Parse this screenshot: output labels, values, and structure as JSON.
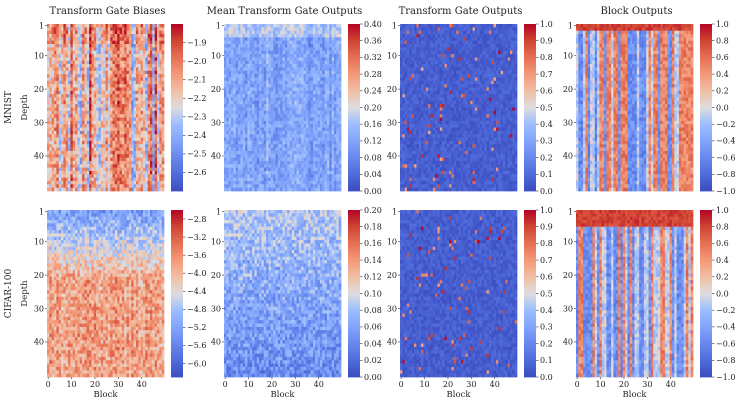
{
  "chart_data": [
    {
      "type": "heatmap",
      "grid": {
        "rows": 50,
        "cols": 50
      },
      "x_axis": {
        "label": "Block",
        "ticks": [
          0,
          10,
          20,
          30,
          40
        ]
      },
      "y_axis": {
        "label": "Depth",
        "ticks": [
          1,
          10,
          20,
          30,
          40
        ]
      },
      "row_labels": [
        "MNIST",
        "CIFAR-100"
      ],
      "panels": [
        {
          "title": "Transform Gate Biases",
          "pattern": "bias",
          "colorbars": [
            {
              "vmin": -2.7,
              "vmax": -1.8,
              "ticks": [
                "−1.9",
                "−2.0",
                "−2.1",
                "−2.2",
                "−2.3",
                "−2.4",
                "−2.5",
                "−2.6"
              ],
              "tick_values": [
                -1.9,
                -2.0,
                -2.1,
                -2.2,
                -2.3,
                -2.4,
                -2.5,
                -2.6
              ]
            },
            {
              "vmin": -6.3,
              "vmax": -2.6,
              "ticks": [
                "−2.8",
                "−3.2",
                "−3.6",
                "−4.0",
                "−4.4",
                "−4.8",
                "−5.2",
                "−5.6",
                "−6.0"
              ],
              "tick_values": [
                -2.8,
                -3.2,
                -3.6,
                -4.0,
                -4.4,
                -4.8,
                -5.2,
                -5.6,
                -6.0
              ]
            }
          ]
        },
        {
          "title": "Mean Transform Gate Outputs",
          "pattern": "mean",
          "colorbars": [
            {
              "vmin": 0.0,
              "vmax": 0.4,
              "ticks": [
                "0.40",
                "0.36",
                "0.32",
                "0.28",
                "0.24",
                "0.20",
                "0.16",
                "0.12",
                "0.08",
                "0.04",
                "0.00"
              ],
              "tick_values": [
                0.4,
                0.36,
                0.32,
                0.28,
                0.24,
                0.2,
                0.16,
                0.12,
                0.08,
                0.04,
                0.0
              ]
            },
            {
              "vmin": 0.0,
              "vmax": 0.2,
              "ticks": [
                "0.20",
                "0.18",
                "0.16",
                "0.14",
                "0.12",
                "0.10",
                "0.08",
                "0.06",
                "0.04",
                "0.02",
                "0.00"
              ],
              "tick_values": [
                0.2,
                0.18,
                0.16,
                0.14,
                0.12,
                0.1,
                0.08,
                0.06,
                0.04,
                0.02,
                0.0
              ]
            }
          ]
        },
        {
          "title": "Transform Gate Outputs",
          "pattern": "gate",
          "colorbars": [
            {
              "vmin": 0.0,
              "vmax": 1.0,
              "ticks": [
                "1.0",
                "0.9",
                "0.8",
                "0.7",
                "0.6",
                "0.5",
                "0.4",
                "0.3",
                "0.2",
                "0.1",
                "0.0"
              ],
              "tick_values": [
                1.0,
                0.9,
                0.8,
                0.7,
                0.6,
                0.5,
                0.4,
                0.3,
                0.2,
                0.1,
                0.0
              ]
            },
            {
              "vmin": 0.0,
              "vmax": 1.0,
              "ticks": [
                "1.0",
                "0.9",
                "0.8",
                "0.7",
                "0.6",
                "0.5",
                "0.4",
                "0.3",
                "0.2",
                "0.1",
                "0.0"
              ],
              "tick_values": [
                1.0,
                0.9,
                0.8,
                0.7,
                0.6,
                0.5,
                0.4,
                0.3,
                0.2,
                0.1,
                0.0
              ]
            }
          ]
        },
        {
          "title": "Block Outputs",
          "pattern": "block",
          "colorbars": [
            {
              "vmin": -1.0,
              "vmax": 1.0,
              "ticks": [
                "1.0",
                "0.8",
                "0.6",
                "0.4",
                "0.2",
                "0.0",
                "−0.2",
                "−0.4",
                "−0.6",
                "−0.8",
                "−1.0"
              ],
              "tick_values": [
                1.0,
                0.8,
                0.6,
                0.4,
                0.2,
                0.0,
                -0.2,
                -0.4,
                -0.6,
                -0.8,
                -1.0
              ]
            },
            {
              "vmin": -1.0,
              "vmax": 1.0,
              "ticks": [
                "1.0",
                "0.8",
                "0.6",
                "0.4",
                "0.2",
                "0.0",
                "−0.2",
                "−0.4",
                "−0.6",
                "−0.8",
                "−1.0"
              ],
              "tick_values": [
                1.0,
                0.8,
                0.6,
                0.4,
                0.2,
                0.0,
                -0.2,
                -0.4,
                -0.6,
                -0.8,
                -1.0
              ]
            }
          ]
        }
      ],
      "colormap": {
        "name": "coolwarm",
        "low": "#3b4cc0",
        "mid": "#dddddd",
        "high": "#b40426"
      }
    }
  ]
}
